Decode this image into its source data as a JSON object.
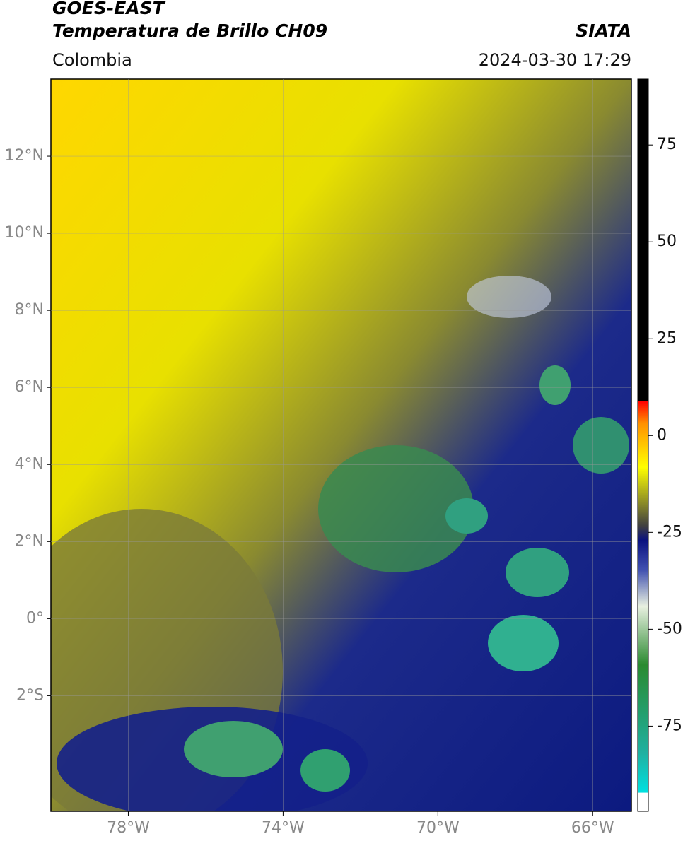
{
  "header": {
    "satellite": "GOES-EAST",
    "product": "Temperatura de Brillo CH09",
    "source": "SIATA",
    "region": "Colombia",
    "timestamp": "2024-03-30 17:29"
  },
  "map": {
    "xlim": [
      -80,
      -65
    ],
    "ylim": [
      -5,
      14
    ],
    "xticks": [
      {
        "value": -78,
        "label": "78°W"
      },
      {
        "value": -74,
        "label": "74°W"
      },
      {
        "value": -70,
        "label": "70°W"
      },
      {
        "value": -66,
        "label": "66°W"
      }
    ],
    "yticks": [
      {
        "value": 12,
        "label": "12°N"
      },
      {
        "value": 10,
        "label": "10°N"
      },
      {
        "value": 8,
        "label": "8°N"
      },
      {
        "value": 6,
        "label": "6°N"
      },
      {
        "value": 4,
        "label": "4°N"
      },
      {
        "value": 2,
        "label": "2°N"
      },
      {
        "value": 0,
        "label": "0°"
      },
      {
        "value": -2,
        "label": "2°S"
      }
    ],
    "grid": true
  },
  "colorbar": {
    "lim": [
      -97,
      92
    ],
    "ticks": [
      75,
      50,
      25,
      0,
      -25,
      -50,
      -75
    ]
  }
}
